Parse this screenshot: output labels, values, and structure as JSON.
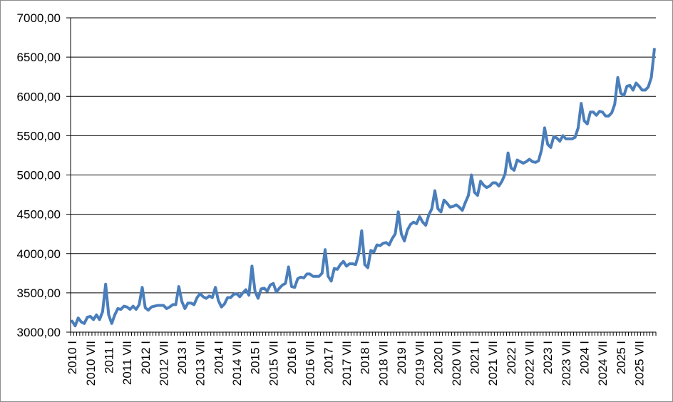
{
  "chart_data": {
    "type": "line",
    "title": "",
    "xlabel": "",
    "ylabel": "",
    "ylim": [
      3000,
      7000
    ],
    "yticks": [
      "3000,00",
      "3500,00",
      "4000,00",
      "4500,00",
      "5000,00",
      "5500,00",
      "6000,00",
      "6500,00",
      "7000,00"
    ],
    "xtick_labels": [
      "2010 I",
      "2010 VII",
      "2011 I",
      "2011 VII",
      "2012 I",
      "2012 VII",
      "2013 I",
      "2013 VII",
      "2014 I",
      "2014 VII",
      "2015 I",
      "2015 VII",
      "2016 I",
      "2016 VII",
      "2017 I",
      "2017 VII",
      "2018 I",
      "2018 VII",
      "2019 I",
      "2019 VII",
      "2020 I",
      "2020 VII",
      "2021 I",
      "2021 VII",
      "2022 I",
      "2022 VII",
      "2023 I",
      "2023 VII",
      "2024 I",
      "2024 VII",
      "2025 I",
      "2025 VII"
    ],
    "grid": true,
    "legend": "none",
    "line_color": "#4a7ebb",
    "series": [
      {
        "values": [
          3140,
          3080,
          3180,
          3130,
          3110,
          3190,
          3200,
          3160,
          3220,
          3160,
          3260,
          3610,
          3220,
          3110,
          3220,
          3300,
          3290,
          3330,
          3320,
          3290,
          3330,
          3290,
          3350,
          3570,
          3310,
          3280,
          3320,
          3330,
          3340,
          3340,
          3340,
          3300,
          3320,
          3350,
          3350,
          3580,
          3390,
          3300,
          3370,
          3370,
          3350,
          3440,
          3490,
          3450,
          3430,
          3460,
          3440,
          3570,
          3400,
          3320,
          3360,
          3440,
          3440,
          3480,
          3490,
          3450,
          3500,
          3540,
          3470,
          3840,
          3520,
          3430,
          3550,
          3560,
          3520,
          3600,
          3620,
          3510,
          3560,
          3600,
          3620,
          3830,
          3580,
          3570,
          3680,
          3700,
          3690,
          3740,
          3740,
          3710,
          3710,
          3710,
          3750,
          4050,
          3710,
          3650,
          3810,
          3800,
          3860,
          3900,
          3840,
          3870,
          3870,
          3860,
          3990,
          4290,
          3860,
          3820,
          4040,
          4020,
          4110,
          4100,
          4130,
          4140,
          4110,
          4190,
          4250,
          4530,
          4250,
          4160,
          4300,
          4370,
          4400,
          4380,
          4470,
          4400,
          4360,
          4490,
          4570,
          4800,
          4570,
          4530,
          4680,
          4640,
          4590,
          4600,
          4620,
          4590,
          4550,
          4650,
          4740,
          5000,
          4780,
          4740,
          4920,
          4870,
          4840,
          4860,
          4900,
          4900,
          4860,
          4920,
          5010,
          5280,
          5090,
          5060,
          5190,
          5170,
          5150,
          5170,
          5200,
          5170,
          5160,
          5180,
          5320,
          5600,
          5390,
          5350,
          5490,
          5470,
          5430,
          5500,
          5460,
          5460,
          5460,
          5480,
          5600,
          5910,
          5690,
          5650,
          5800,
          5800,
          5760,
          5810,
          5800,
          5750,
          5750,
          5790,
          5900,
          6240,
          6040,
          6010,
          6130,
          6140,
          6080,
          6170,
          6130,
          6080,
          6080,
          6120,
          6240,
          6600
        ]
      }
    ]
  }
}
